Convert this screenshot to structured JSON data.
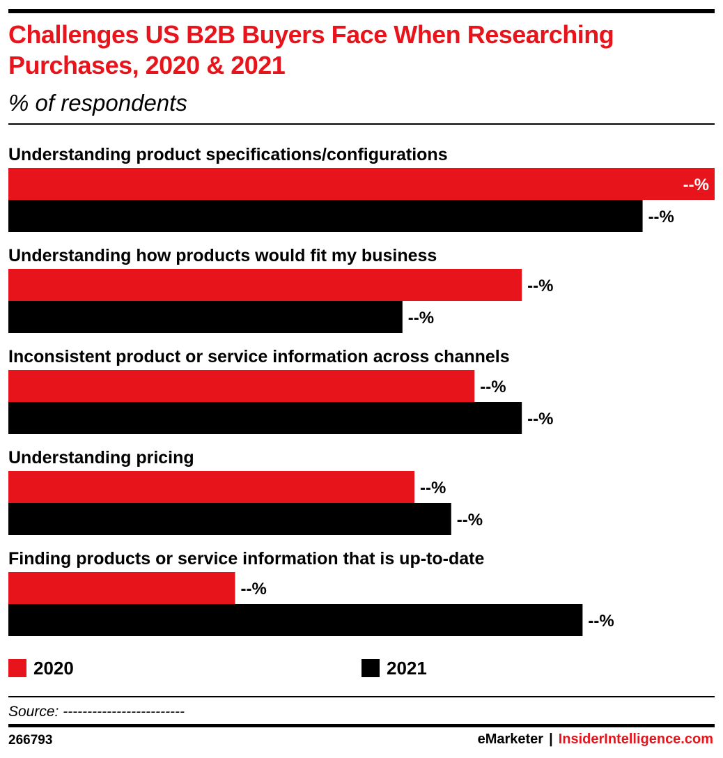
{
  "title": "Challenges US B2B Buyers Face When Researching Purchases, 2020 & 2021",
  "subtitle": "% of respondents",
  "colors": {
    "series_2020": "#e8141c",
    "series_2021": "#000000",
    "title": "#e8141c"
  },
  "chart_data": {
    "type": "bar",
    "orientation": "horizontal",
    "categories": [
      "Understanding product specifications/configurations",
      "Understanding how products would fit my business",
      "Inconsistent product or service information across channels",
      "Understanding pricing",
      "Finding products or service information that is up-to-date"
    ],
    "series": [
      {
        "name": "2020",
        "values": [
          100,
          72.7,
          66.0,
          57.5,
          32.1
        ],
        "labels": [
          "--%",
          "--%",
          "--%",
          "--%",
          "--%"
        ]
      },
      {
        "name": "2021",
        "values": [
          89.8,
          55.8,
          72.7,
          62.7,
          81.3
        ],
        "labels": [
          "--%",
          "--%",
          "--%",
          "--%",
          "--%"
        ]
      }
    ],
    "xlim": [
      0,
      100
    ],
    "legend": "bottom",
    "grid": false
  },
  "legend": {
    "items": [
      "2020",
      "2021"
    ]
  },
  "source": "Source: -------------------------",
  "footer": {
    "chart_id": "266793",
    "brand_emarketer": "eMarketer",
    "separator": "|",
    "brand_ii": "InsiderIntelligence.com"
  }
}
